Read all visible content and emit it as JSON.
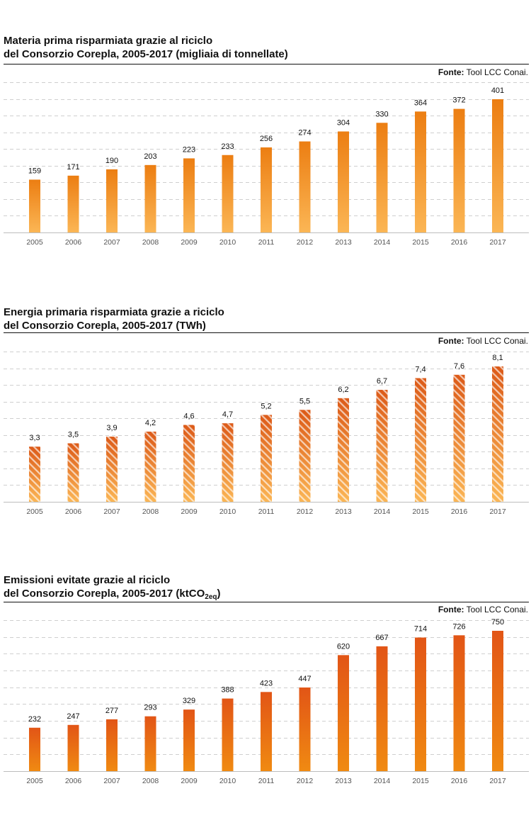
{
  "source_label": "Fonte:",
  "source_text": "Tool LCC Conai.",
  "chart_data": [
    {
      "type": "bar",
      "title_line1": "Materia prima risparmiata grazie al riciclo",
      "title_line2": "del Consorzio Corepla, 2005-2017 (migliaia di tonnellate)",
      "categories": [
        "2005",
        "2006",
        "2007",
        "2008",
        "2009",
        "2010",
        "2011",
        "2012",
        "2013",
        "2014",
        "2015",
        "2016",
        "2017"
      ],
      "values": [
        159,
        171,
        190,
        203,
        223,
        233,
        256,
        274,
        304,
        330,
        364,
        372,
        401
      ],
      "value_labels": [
        "159",
        "171",
        "190",
        "203",
        "223",
        "233",
        "256",
        "274",
        "304",
        "330",
        "364",
        "372",
        "401"
      ],
      "ylim": [
        0,
        460
      ],
      "grid": true,
      "fill": "gradient",
      "colors": {
        "top": "#ec7e12",
        "bottom": "#fbb655"
      }
    },
    {
      "type": "bar",
      "title_line1": "Energia primaria risparmiata grazie a riciclo",
      "title_line2": "del Consorzio Corepla, 2005-2017 (TWh)",
      "categories": [
        "2005",
        "2006",
        "2007",
        "2008",
        "2009",
        "2010",
        "2011",
        "2012",
        "2013",
        "2014",
        "2015",
        "2016",
        "2017"
      ],
      "values": [
        3.3,
        3.5,
        3.9,
        4.2,
        4.6,
        4.7,
        5.2,
        5.5,
        6.2,
        6.7,
        7.4,
        7.6,
        8.1
      ],
      "value_labels": [
        "3,3",
        "3,5",
        "3,9",
        "4,2",
        "4,6",
        "4,7",
        "5,2",
        "5,5",
        "6,2",
        "6,7",
        "7,4",
        "7,6",
        "8,1"
      ],
      "ylim": [
        0,
        8.6
      ],
      "grid": true,
      "fill": "hatched-gradient",
      "colors": {
        "top": "#dc5a18",
        "bottom": "#fbb655"
      }
    },
    {
      "type": "bar",
      "title_line1": "Emissioni evitate grazie al riciclo",
      "title_line2_main": "del Consorzio Corepla, 2005-2017 (ktCO",
      "title_line2_sub": "2eq",
      "title_line2_end": ")",
      "categories": [
        "2005",
        "2006",
        "2007",
        "2008",
        "2009",
        "2010",
        "2011",
        "2012",
        "2013",
        "2014",
        "2015",
        "2016",
        "2017"
      ],
      "values": [
        232,
        247,
        277,
        293,
        329,
        388,
        423,
        447,
        620,
        667,
        714,
        726,
        750
      ],
      "value_labels": [
        "232",
        "247",
        "277",
        "293",
        "329",
        "388",
        "423",
        "447",
        "620",
        "667",
        "714",
        "726",
        "750"
      ],
      "ylim": [
        0,
        800
      ],
      "grid": true,
      "fill": "gradient",
      "colors": {
        "top": "#e25516",
        "bottom": "#f08a12"
      }
    }
  ]
}
